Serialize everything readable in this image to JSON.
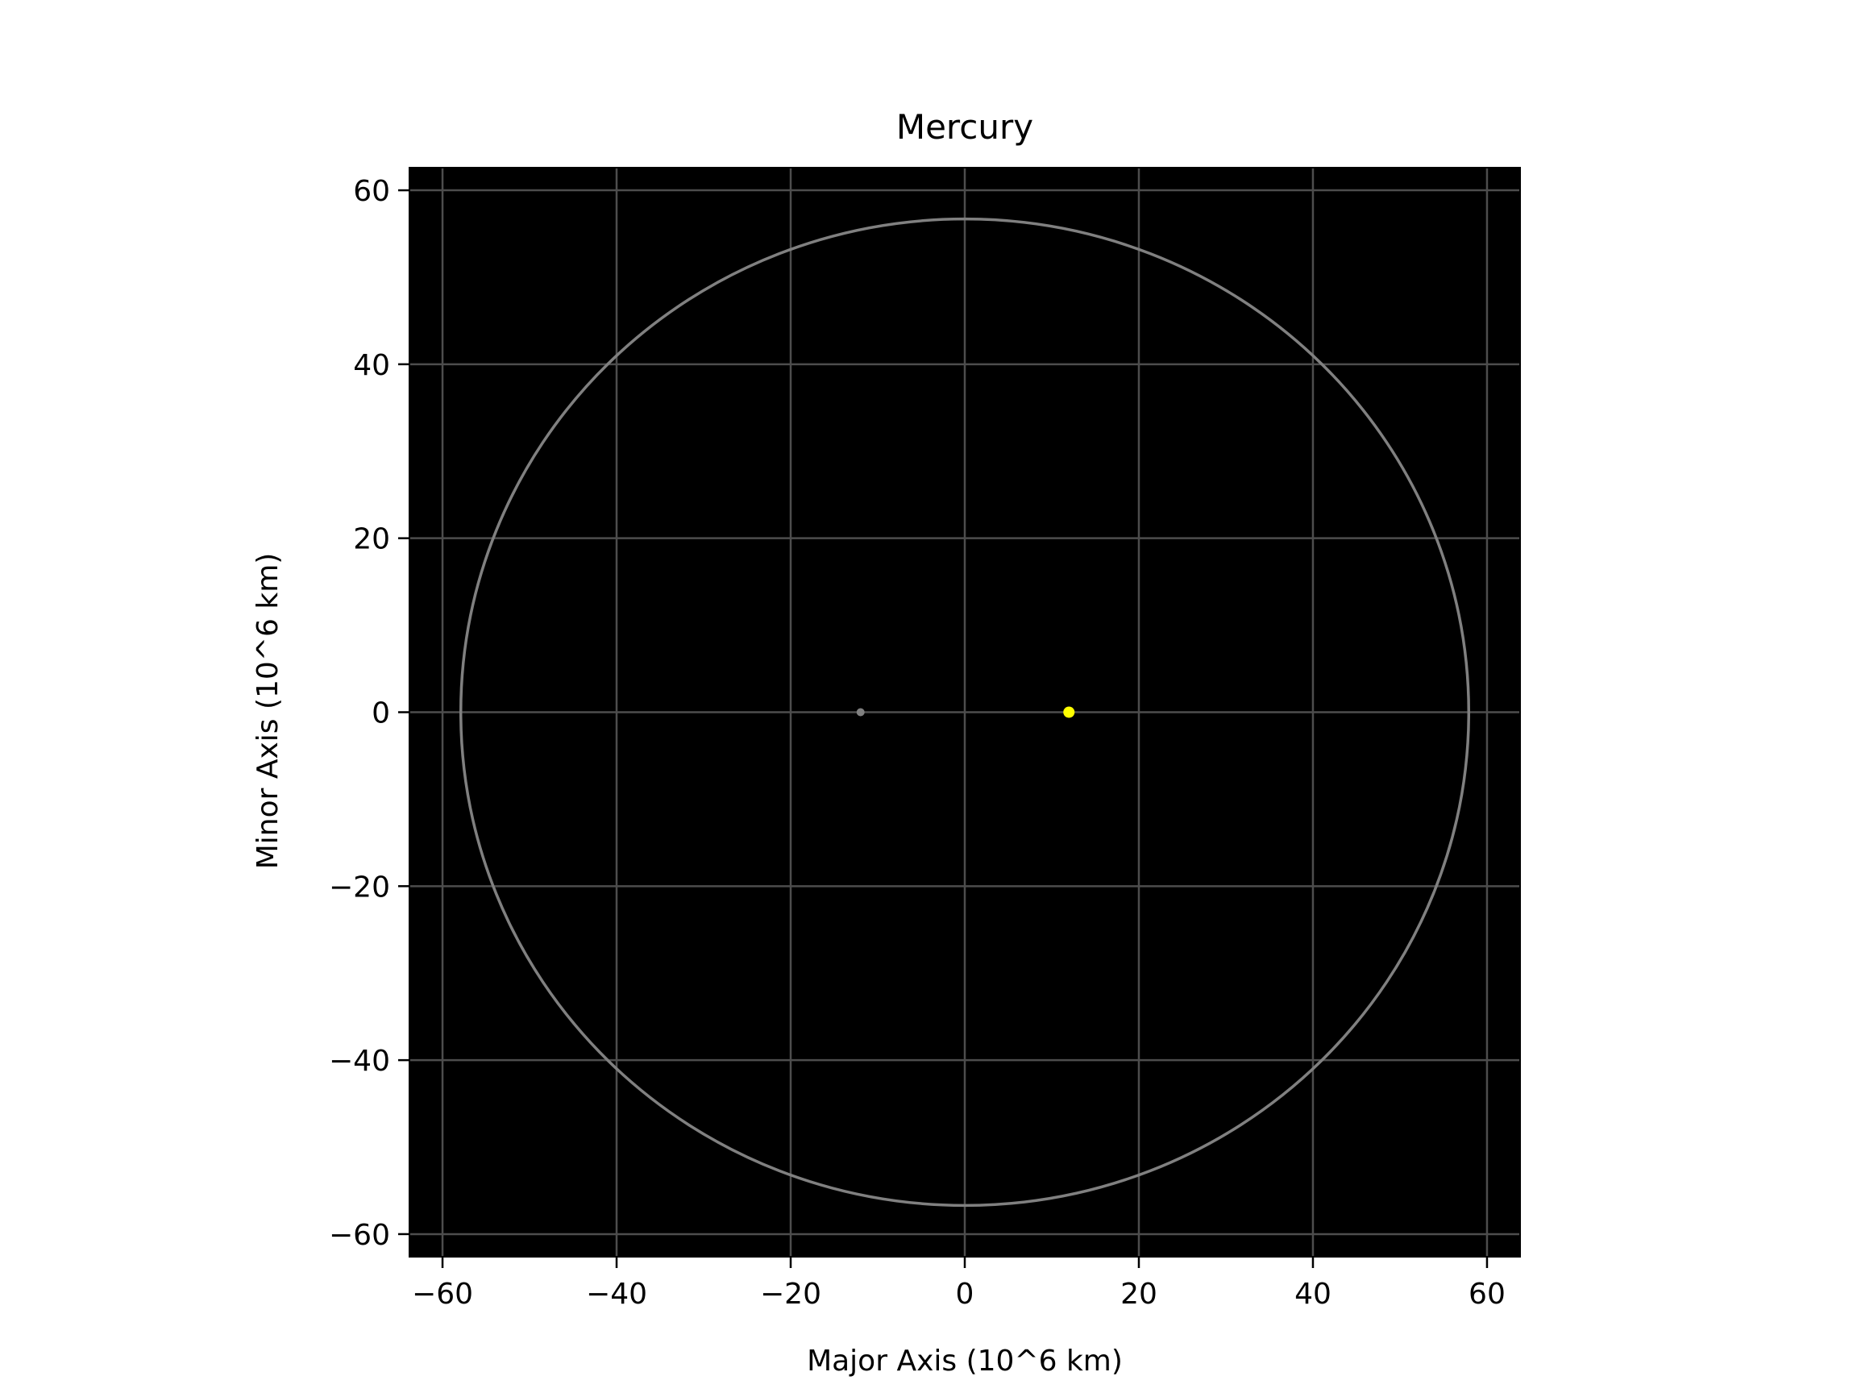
{
  "chart_data": {
    "type": "scatter",
    "title": "Mercury",
    "xlabel": "Major Axis (10^6 km)",
    "ylabel": "Minor Axis (10^6 km)",
    "xlim": [
      -63.8,
      63.8
    ],
    "ylim": [
      -62.6,
      62.6
    ],
    "xticks": [
      -60,
      -40,
      -20,
      0,
      20,
      40,
      60
    ],
    "yticks": [
      -60,
      -40,
      -20,
      0,
      20,
      40,
      60
    ],
    "xtick_labels": [
      "−60",
      "−40",
      "−20",
      "0",
      "20",
      "40",
      "60"
    ],
    "ytick_labels": [
      "−60",
      "−40",
      "−20",
      "0",
      "20",
      "40",
      "60"
    ],
    "grid": true,
    "background_color": "#000000",
    "grid_color": "#4d4d4d",
    "orbit": {
      "semi_major_axis": 57.9,
      "semi_minor_axis": 56.7,
      "center": [
        0,
        0
      ],
      "color": "#808080"
    },
    "points": [
      {
        "x": 11.97,
        "y": 0,
        "color": "#ffff00",
        "kind": "sun"
      },
      {
        "x": -11.97,
        "y": 0,
        "color": "#808080",
        "kind": "empty-focus"
      }
    ]
  }
}
